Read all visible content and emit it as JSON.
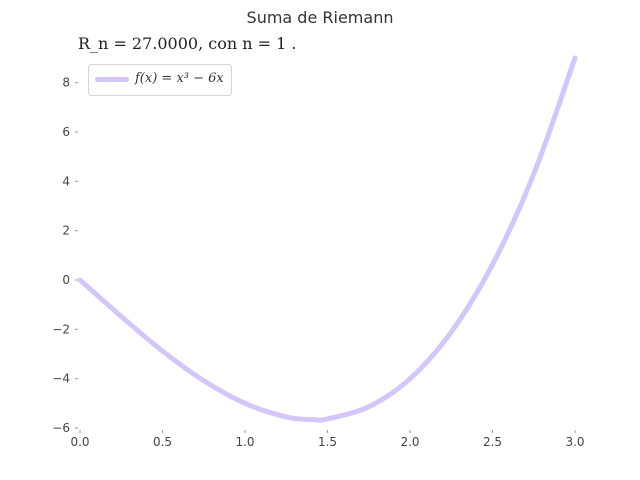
{
  "chart_data": {
    "type": "line",
    "title": "Suma de Riemann",
    "subtitle": "R_n = 27.0000,  con n = 1 .",
    "xlabel": "",
    "ylabel": "",
    "xlim": [
      0.0,
      3.0
    ],
    "ylim": [
      -6,
      9
    ],
    "grid": false,
    "legend_position": "top-left",
    "xticks": [
      "0.0",
      "0.5",
      "1.0",
      "1.5",
      "2.0",
      "2.5",
      "3.0"
    ],
    "yticks": [
      "−6",
      "−4",
      "−2",
      "0",
      "2",
      "4",
      "6",
      "8"
    ],
    "series": [
      {
        "name": "f(x) = x³ − 6x",
        "color": "#d4c6fb",
        "x": [
          0.0,
          0.25,
          0.5,
          0.75,
          1.0,
          1.25,
          1.414,
          1.5,
          1.75,
          2.0,
          2.25,
          2.5,
          2.75,
          3.0
        ],
        "y": [
          0.0,
          -1.48,
          -2.88,
          -4.08,
          -5.0,
          -5.55,
          -5.66,
          -5.63,
          -5.14,
          -4.0,
          -2.11,
          0.63,
          4.3,
          9.0
        ]
      }
    ]
  }
}
